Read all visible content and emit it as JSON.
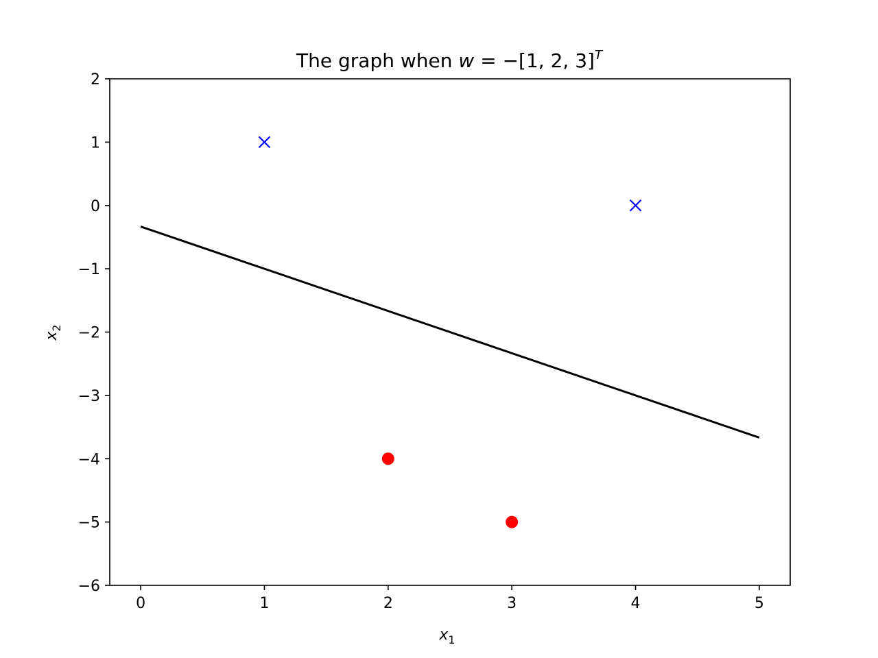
{
  "chart_data": {
    "type": "scatter",
    "title": {
      "prefix": "The graph when ",
      "var": "w",
      "equals": " = ",
      "minus": "−",
      "vector": "[1, 2, 3]",
      "superscript": "T"
    },
    "xlabel": {
      "base": "x",
      "sub": "1"
    },
    "ylabel": {
      "base": "x",
      "sub": "2"
    },
    "xlim": [
      -0.25,
      5.25
    ],
    "ylim": [
      -6,
      2
    ],
    "xticks": [
      0,
      1,
      2,
      3,
      4,
      5
    ],
    "yticks": [
      2,
      1,
      0,
      -1,
      -2,
      -3,
      -4,
      -5,
      -6
    ],
    "xtick_labels": [
      "0",
      "1",
      "2",
      "3",
      "4",
      "5"
    ],
    "ytick_labels": [
      "2",
      "1",
      "0",
      "−1",
      "−2",
      "−3",
      "−4",
      "−5",
      "−6"
    ],
    "grid": false,
    "series": [
      {
        "marker": "x",
        "color": "#0000ff",
        "points": [
          {
            "x": 1,
            "y": 1
          },
          {
            "x": 4,
            "y": 0
          }
        ]
      },
      {
        "marker": "o",
        "color": "#ff0000",
        "points": [
          {
            "x": 2,
            "y": -4
          },
          {
            "x": 3,
            "y": -5
          }
        ]
      }
    ],
    "lines": [
      {
        "color": "#000000",
        "points": [
          {
            "x": 0,
            "y": -0.3333
          },
          {
            "x": 5,
            "y": -3.6667
          }
        ]
      }
    ]
  }
}
